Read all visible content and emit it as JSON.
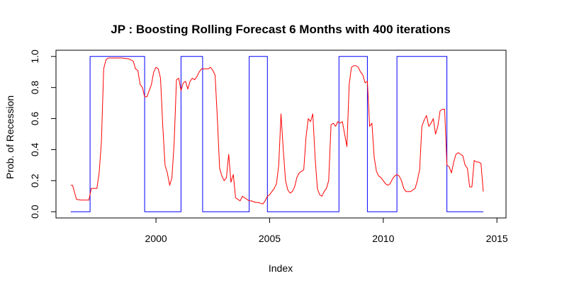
{
  "chart_data": {
    "type": "line",
    "title": "JP : Boosting Rolling Forecast 6 Months with 400 iterations",
    "xlabel": "Index",
    "ylabel": "Prob. of Recession",
    "xlim": [
      1995.6,
      2015.4
    ],
    "ylim": [
      -0.04,
      1.04
    ],
    "x_ticks": [
      2000,
      2005,
      2010,
      2015
    ],
    "x_tick_labels": [
      "2000",
      "2005",
      "2010",
      "2015"
    ],
    "y_ticks": [
      0.0,
      0.2,
      0.4,
      0.6,
      0.8,
      1.0
    ],
    "y_tick_labels": [
      "0.0",
      "0.2",
      "0.4",
      "0.6",
      "0.8",
      "1.0"
    ],
    "grid": false,
    "legend": "none",
    "series": [
      {
        "color": "#0000ff",
        "style": "step",
        "x": [
          1996.25,
          1997.1,
          1997.1,
          1999.5,
          1999.5,
          2001.1,
          2001.1,
          2002.05,
          2002.05,
          2004.1,
          2004.1,
          2004.9,
          2004.9,
          2008.05,
          2008.05,
          2009.3,
          2009.3,
          2010.6,
          2010.6,
          2012.8,
          2012.8,
          2014.4
        ],
        "y": [
          0,
          0,
          1,
          1,
          0,
          0,
          1,
          1,
          0,
          0,
          1,
          1,
          0,
          0,
          1,
          1,
          0,
          0,
          1,
          1,
          0,
          0
        ]
      },
      {
        "color": "#ff0000",
        "style": "line",
        "x": [
          1996.25,
          1996.33,
          1996.5,
          1996.7,
          1996.9,
          1997.05,
          1997.15,
          1997.25,
          1997.4,
          1997.5,
          1997.6,
          1997.7,
          1997.8,
          1997.9,
          1998.0,
          1998.2,
          1998.5,
          1998.8,
          1999.0,
          1999.1,
          1999.2,
          1999.3,
          1999.4,
          1999.5,
          1999.6,
          1999.7,
          1999.8,
          1999.9,
          2000.0,
          2000.1,
          2000.2,
          2000.3,
          2000.4,
          2000.5,
          2000.6,
          2000.7,
          2000.8,
          2000.9,
          2001.0,
          2001.1,
          2001.2,
          2001.3,
          2001.4,
          2001.5,
          2001.6,
          2001.7,
          2001.8,
          2001.9,
          2002.0,
          2002.1,
          2002.2,
          2002.3,
          2002.4,
          2002.5,
          2002.6,
          2002.7,
          2002.8,
          2002.9,
          2003.0,
          2003.1,
          2003.2,
          2003.3,
          2003.4,
          2003.5,
          2003.6,
          2003.7,
          2003.8,
          2003.9,
          2004.0,
          2004.1,
          2004.2,
          2004.3,
          2004.4,
          2004.5,
          2004.6,
          2004.7,
          2004.8,
          2004.9,
          2005.0,
          2005.1,
          2005.2,
          2005.3,
          2005.4,
          2005.5,
          2005.6,
          2005.7,
          2005.8,
          2005.9,
          2006.0,
          2006.1,
          2006.2,
          2006.3,
          2006.4,
          2006.5,
          2006.6,
          2006.7,
          2006.8,
          2006.9,
          2007.0,
          2007.1,
          2007.2,
          2007.3,
          2007.4,
          2007.5,
          2007.6,
          2007.7,
          2007.8,
          2007.9,
          2008.0,
          2008.1,
          2008.2,
          2008.3,
          2008.4,
          2008.5,
          2008.6,
          2008.7,
          2008.8,
          2008.9,
          2009.0,
          2009.1,
          2009.2,
          2009.3,
          2009.4,
          2009.5,
          2009.6,
          2009.7,
          2009.8,
          2009.9,
          2010.0,
          2010.1,
          2010.2,
          2010.3,
          2010.4,
          2010.5,
          2010.6,
          2010.7,
          2010.8,
          2010.9,
          2011.0,
          2011.1,
          2011.2,
          2011.3,
          2011.4,
          2011.5,
          2011.6,
          2011.7,
          2011.8,
          2011.9,
          2012.0,
          2012.1,
          2012.2,
          2012.3,
          2012.4,
          2012.5,
          2012.6,
          2012.7,
          2012.8,
          2012.9,
          2013.0,
          2013.1,
          2013.2,
          2013.3,
          2013.4,
          2013.5,
          2013.6,
          2013.7,
          2013.8,
          2013.9,
          2014.0,
          2014.1,
          2014.2,
          2014.3,
          2014.4
        ],
        "y": [
          0.17,
          0.17,
          0.08,
          0.075,
          0.075,
          0.075,
          0.15,
          0.15,
          0.15,
          0.25,
          0.45,
          0.92,
          0.98,
          0.99,
          0.99,
          0.99,
          0.99,
          0.985,
          0.97,
          0.92,
          0.91,
          0.82,
          0.8,
          0.74,
          0.74,
          0.78,
          0.82,
          0.9,
          0.93,
          0.92,
          0.86,
          0.55,
          0.3,
          0.25,
          0.17,
          0.22,
          0.45,
          0.85,
          0.86,
          0.78,
          0.83,
          0.84,
          0.79,
          0.84,
          0.86,
          0.85,
          0.87,
          0.9,
          0.92,
          0.92,
          0.92,
          0.92,
          0.93,
          0.91,
          0.88,
          0.6,
          0.28,
          0.23,
          0.2,
          0.22,
          0.37,
          0.19,
          0.24,
          0.09,
          0.08,
          0.07,
          0.1,
          0.09,
          0.08,
          0.07,
          0.07,
          0.065,
          0.06,
          0.06,
          0.055,
          0.05,
          0.07,
          0.1,
          0.11,
          0.13,
          0.15,
          0.18,
          0.3,
          0.63,
          0.4,
          0.2,
          0.14,
          0.12,
          0.13,
          0.16,
          0.22,
          0.25,
          0.26,
          0.27,
          0.48,
          0.6,
          0.58,
          0.63,
          0.35,
          0.15,
          0.11,
          0.1,
          0.13,
          0.15,
          0.2,
          0.56,
          0.57,
          0.55,
          0.58,
          0.57,
          0.58,
          0.5,
          0.42,
          0.82,
          0.93,
          0.94,
          0.94,
          0.93,
          0.9,
          0.88,
          0.83,
          0.84,
          0.55,
          0.57,
          0.35,
          0.26,
          0.23,
          0.22,
          0.2,
          0.18,
          0.17,
          0.18,
          0.21,
          0.23,
          0.24,
          0.23,
          0.2,
          0.15,
          0.13,
          0.13,
          0.13,
          0.14,
          0.15,
          0.2,
          0.27,
          0.55,
          0.59,
          0.62,
          0.55,
          0.57,
          0.6,
          0.5,
          0.55,
          0.65,
          0.66,
          0.66,
          0.3,
          0.29,
          0.25,
          0.32,
          0.37,
          0.38,
          0.37,
          0.36,
          0.3,
          0.28,
          0.16,
          0.16,
          0.33,
          0.32,
          0.32,
          0.31,
          0.13
        ]
      }
    ]
  }
}
